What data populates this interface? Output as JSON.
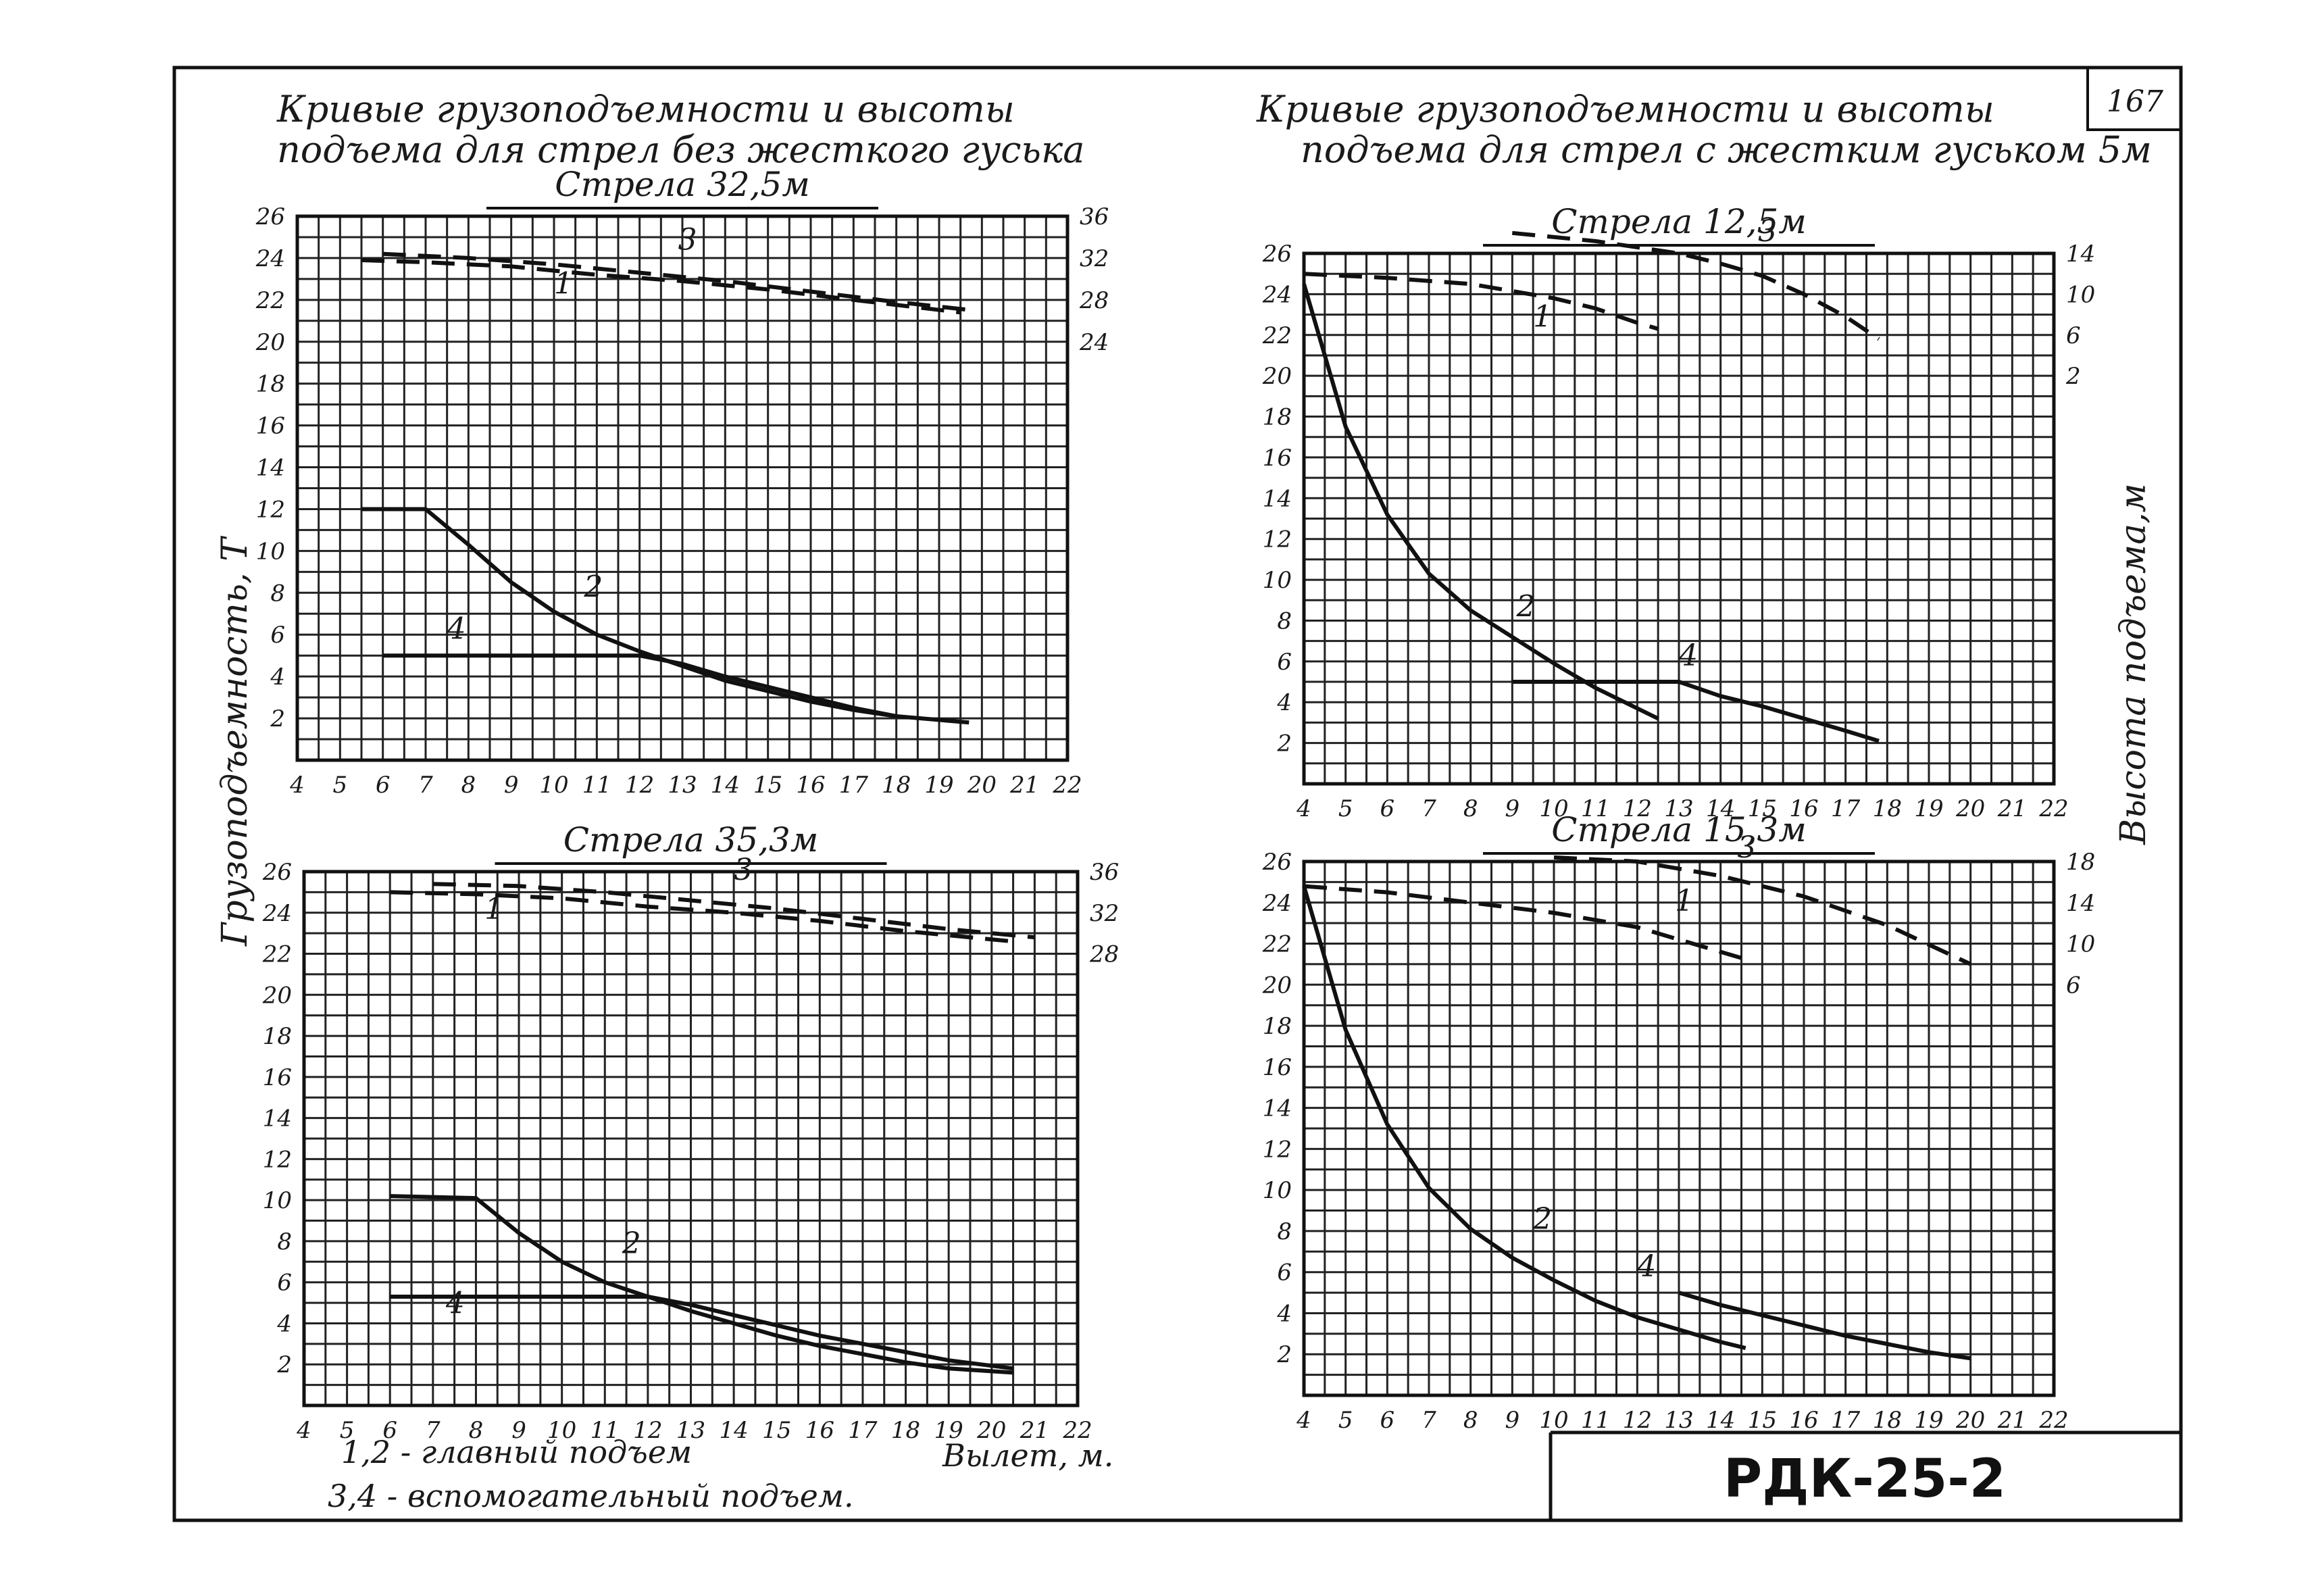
{
  "sheet": {
    "page_number": "167",
    "left_title_line1": "Кривые грузоподъемности и высоты",
    "left_title_line2": "подъема для стрел без жесткого гуська",
    "right_title_line1": "Кривые грузоподъемности и высоты",
    "right_title_line2": "подъема для стрел с жестким гуськом 5м",
    "y_axis_label_left": "Грузоподъемность, Т",
    "y_axis_label_right": "Высота подъема,м",
    "x_axis_label": "Вылет, м.",
    "legend_line1": "1,2 - главный подъем",
    "legend_line2": "3,4 - вспомогательный подъем.",
    "stamp": "РДК-25-2",
    "colors": {
      "ink": "#111111",
      "paper": "#ffffff"
    }
  },
  "chart_data": [
    {
      "type": "line",
      "title": "Стрела 32,5м",
      "xlabel": "Вылет, м.",
      "ylabel": "Грузоподъемность, Т",
      "xlim": [
        4,
        22
      ],
      "ylim": [
        0,
        26
      ],
      "x_ticks": [
        "4",
        "5",
        "6",
        "7",
        "8",
        "9",
        "10",
        "11",
        "12",
        "13",
        "14",
        "15",
        "16",
        "17",
        "18",
        "19",
        "20",
        "21",
        "22"
      ],
      "y_ticks": [
        "2",
        "4",
        "6",
        "8",
        "10",
        "12",
        "14",
        "16",
        "18",
        "20",
        "22",
        "24",
        "26"
      ],
      "y2_ticks": [
        {
          "label": "36",
          "at": 26
        },
        {
          "label": "32",
          "at": 24
        },
        {
          "label": "28",
          "at": 22
        },
        {
          "label": "24",
          "at": 20
        }
      ],
      "series": [
        {
          "name": "1",
          "style": "dashed",
          "x": [
            5.5,
            7,
            9,
            11,
            13,
            15,
            17,
            19.5
          ],
          "y": [
            23.9,
            23.8,
            23.6,
            23.2,
            22.9,
            22.5,
            22.0,
            21.4
          ]
        },
        {
          "name": "2",
          "style": "solid",
          "x": [
            5.5,
            7,
            8,
            9,
            10,
            11,
            12,
            13,
            14,
            15,
            16,
            17,
            18,
            19.7
          ],
          "y": [
            12,
            12,
            10.3,
            8.5,
            7.1,
            6.0,
            5.2,
            4.5,
            3.8,
            3.3,
            2.8,
            2.4,
            2.1,
            1.8
          ]
        },
        {
          "name": "3",
          "style": "dashed",
          "x": [
            6,
            8,
            10,
            12,
            14,
            16,
            18,
            19.8
          ],
          "y": [
            24.2,
            24.0,
            23.7,
            23.3,
            22.9,
            22.4,
            21.9,
            21.5
          ]
        },
        {
          "name": "4",
          "style": "solid",
          "x": [
            6,
            9,
            12,
            13,
            14,
            15,
            16,
            17,
            18
          ],
          "y": [
            5.0,
            5.0,
            5.0,
            4.6,
            4.0,
            3.5,
            3.0,
            2.5,
            2.1
          ]
        }
      ],
      "labels": [
        {
          "text": "1",
          "x": 10.0,
          "y": 22.3
        },
        {
          "text": "2",
          "x": 10.7,
          "y": 7.8
        },
        {
          "text": "3",
          "x": 12.9,
          "y": 24.4
        },
        {
          "text": "4",
          "x": 7.5,
          "y": 5.8
        }
      ]
    },
    {
      "type": "line",
      "title": "Стрела 35,3м",
      "xlabel": "Вылет, м.",
      "ylabel": "Грузоподъемность, Т",
      "xlim": [
        4,
        22
      ],
      "ylim": [
        0,
        26
      ],
      "x_ticks": [
        "4",
        "5",
        "6",
        "7",
        "8",
        "9",
        "10",
        "11",
        "12",
        "13",
        "14",
        "15",
        "16",
        "17",
        "18",
        "19",
        "20",
        "21",
        "22"
      ],
      "y_ticks": [
        "2",
        "4",
        "6",
        "8",
        "10",
        "12",
        "14",
        "16",
        "18",
        "20",
        "22",
        "24",
        "26"
      ],
      "y2_ticks": [
        {
          "label": "36",
          "at": 26
        },
        {
          "label": "32",
          "at": 24
        },
        {
          "label": "28",
          "at": 22
        }
      ],
      "series": [
        {
          "name": "1",
          "style": "dashed",
          "x": [
            6,
            8,
            10,
            12,
            14,
            16,
            18,
            20.5
          ],
          "y": [
            25.0,
            24.9,
            24.7,
            24.3,
            24.0,
            23.6,
            23.1,
            22.6
          ]
        },
        {
          "name": "2",
          "style": "solid",
          "x": [
            6,
            8,
            9,
            10,
            11,
            12,
            13,
            14,
            15,
            16,
            17,
            18,
            19,
            20.5
          ],
          "y": [
            10.2,
            10.1,
            8.4,
            7.0,
            6.0,
            5.3,
            4.6,
            4.0,
            3.4,
            2.9,
            2.5,
            2.1,
            1.8,
            1.6
          ]
        },
        {
          "name": "3",
          "style": "dashed",
          "x": [
            7,
            9,
            11,
            13,
            15,
            17,
            19,
            21
          ],
          "y": [
            25.4,
            25.3,
            25.0,
            24.6,
            24.2,
            23.7,
            23.2,
            22.8
          ]
        },
        {
          "name": "4",
          "style": "solid",
          "x": [
            6,
            9,
            12,
            13,
            14,
            15,
            16,
            17,
            18,
            19,
            20.5
          ],
          "y": [
            5.3,
            5.3,
            5.3,
            4.9,
            4.4,
            3.9,
            3.4,
            3.0,
            2.6,
            2.2,
            1.8
          ]
        }
      ],
      "labels": [
        {
          "text": "1",
          "x": 8.2,
          "y": 23.7
        },
        {
          "text": "2",
          "x": 11.4,
          "y": 7.4
        },
        {
          "text": "3",
          "x": 14.0,
          "y": 25.6
        },
        {
          "text": "4",
          "x": 7.3,
          "y": 4.5
        }
      ]
    },
    {
      "type": "line",
      "title": "Стрела 12,5м",
      "xlabel": "Вылет, м.",
      "ylabel": "Грузоподъемность, Т",
      "xlim": [
        4,
        22
      ],
      "ylim": [
        0,
        26
      ],
      "x_ticks": [
        "4",
        "5",
        "6",
        "7",
        "8",
        "9",
        "10",
        "11",
        "12",
        "13",
        "14",
        "15",
        "16",
        "17",
        "18",
        "19",
        "20",
        "21",
        "22"
      ],
      "y_ticks": [
        "2",
        "4",
        "6",
        "8",
        "10",
        "12",
        "14",
        "16",
        "18",
        "20",
        "22",
        "24",
        "26"
      ],
      "y2_ticks": [
        {
          "label": "14",
          "at": 26
        },
        {
          "label": "10",
          "at": 24
        },
        {
          "label": "6",
          "at": 22
        },
        {
          "label": "2",
          "at": 20
        }
      ],
      "series": [
        {
          "name": "1",
          "style": "dashed",
          "x": [
            4,
            6,
            8,
            10,
            11,
            12,
            12.5
          ],
          "y": [
            25.0,
            24.8,
            24.5,
            23.8,
            23.3,
            22.6,
            22.3
          ]
        },
        {
          "name": "2",
          "style": "solid",
          "x": [
            4,
            5,
            6,
            7,
            8,
            9,
            10,
            11,
            12,
            12.5
          ],
          "y": [
            24.5,
            17.5,
            13.2,
            10.3,
            8.5,
            7.2,
            5.9,
            4.7,
            3.7,
            3.2
          ]
        },
        {
          "name": "3",
          "style": "dashed",
          "x": [
            9,
            11,
            13,
            14,
            15,
            16,
            17,
            17.8
          ],
          "y": [
            27.0,
            26.6,
            26.0,
            25.5,
            24.9,
            24.0,
            22.9,
            21.8
          ]
        },
        {
          "name": "4",
          "style": "solid",
          "x": [
            9,
            11,
            12,
            13,
            14,
            15,
            16,
            17,
            17.8
          ],
          "y": [
            5.0,
            5.0,
            5.0,
            5.0,
            4.3,
            3.8,
            3.2,
            2.6,
            2.1
          ]
        }
      ],
      "labels": [
        {
          "text": "1",
          "x": 9.5,
          "y": 22.4
        },
        {
          "text": "2",
          "x": 9.1,
          "y": 8.2
        },
        {
          "text": "3",
          "x": 14.9,
          "y": 26.6
        },
        {
          "text": "4",
          "x": 13.0,
          "y": 5.8
        }
      ]
    },
    {
      "type": "line",
      "title": "Стрела 15,3м",
      "xlabel": "Вылет, м.",
      "ylabel": "Грузоподъемность, Т",
      "xlim": [
        4,
        22
      ],
      "ylim": [
        0,
        26
      ],
      "x_ticks": [
        "4",
        "5",
        "6",
        "7",
        "8",
        "9",
        "10",
        "11",
        "12",
        "13",
        "14",
        "15",
        "16",
        "17",
        "18",
        "19",
        "20",
        "21",
        "22"
      ],
      "y_ticks": [
        "2",
        "4",
        "6",
        "8",
        "10",
        "12",
        "14",
        "16",
        "18",
        "20",
        "22",
        "24",
        "26"
      ],
      "y2_ticks": [
        {
          "label": "18",
          "at": 26
        },
        {
          "label": "14",
          "at": 24
        },
        {
          "label": "10",
          "at": 22
        },
        {
          "label": "6",
          "at": 20
        }
      ],
      "series": [
        {
          "name": "1",
          "style": "dashed",
          "x": [
            4,
            6,
            8,
            10,
            12,
            13,
            14.5
          ],
          "y": [
            24.8,
            24.5,
            24.0,
            23.5,
            22.8,
            22.2,
            21.3
          ]
        },
        {
          "name": "2",
          "style": "solid",
          "x": [
            4,
            5,
            6,
            7,
            8,
            9,
            10,
            11,
            12,
            13,
            14,
            14.6
          ],
          "y": [
            24.8,
            17.8,
            13.2,
            10.1,
            8.1,
            6.7,
            5.6,
            4.6,
            3.8,
            3.2,
            2.6,
            2.3
          ]
        },
        {
          "name": "3",
          "style": "dashed",
          "x": [
            10,
            12,
            14,
            16,
            18,
            20
          ],
          "y": [
            26.2,
            26.0,
            25.3,
            24.3,
            22.9,
            21.0
          ]
        },
        {
          "name": "4",
          "style": "solid",
          "x": [
            13,
            14,
            15,
            16,
            17,
            18,
            19,
            20
          ],
          "y": [
            5.0,
            4.4,
            3.9,
            3.4,
            2.9,
            2.5,
            2.1,
            1.8
          ]
        }
      ],
      "labels": [
        {
          "text": "1",
          "x": 12.9,
          "y": 23.6
        },
        {
          "text": "2",
          "x": 9.5,
          "y": 8.1
        },
        {
          "text": "3",
          "x": 14.4,
          "y": 26.2
        },
        {
          "text": "4",
          "x": 12.0,
          "y": 5.8
        }
      ]
    }
  ]
}
